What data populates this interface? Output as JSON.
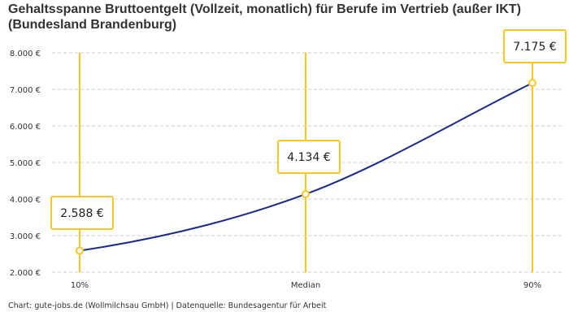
{
  "chart_data": {
    "type": "line",
    "title": "Gehaltsspanne Bruttoentgelt (Vollzeit, monatlich) für Berufe im Vertrieb (außer IKT) (Bundesland Brandenburg)",
    "categories": [
      "10%",
      "Median",
      "90%"
    ],
    "values": [
      2588,
      4134,
      7175
    ],
    "data_labels": [
      "2.588 €",
      "4.134 €",
      "7.175 €"
    ],
    "ylim": [
      2000,
      8000
    ],
    "yticks": [
      2000,
      3000,
      4000,
      5000,
      6000,
      7000,
      8000
    ],
    "ytick_labels": [
      "2.000 €",
      "3.000 €",
      "4.000 €",
      "5.000 €",
      "6.000 €",
      "7.000 €",
      "8.000 €"
    ],
    "grid": true,
    "colors": {
      "line": "#1a2a8c",
      "marker": "#f9c623",
      "grid": "#cccccc"
    }
  },
  "credit": "Chart: gute-jobs.de (Wollmilchsau GmbH) | Datenquelle: Bundesagentur für Arbeit"
}
